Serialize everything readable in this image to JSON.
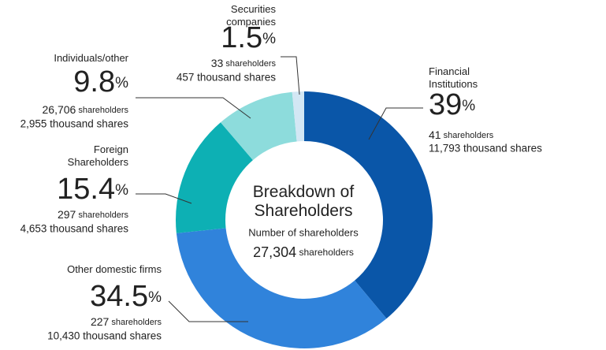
{
  "chart_data": {
    "type": "donut",
    "categories": [
      "Financial\nInstitutions",
      "Other domestic firms",
      "Foreign\nShareholders",
      "Individuals/other",
      "Securities\ncompanies"
    ],
    "values": [
      39,
      34.5,
      15.4,
      9.8,
      1.5
    ],
    "value_labels": [
      "39%",
      "34.5%",
      "15.4%",
      "9.8%",
      "1.5%"
    ],
    "colors": [
      "#0a56a8",
      "#3083db",
      "#0db0b4",
      "#8ddcdc",
      "#d3e7f4"
    ],
    "shareholder_labels": [
      "41 shareholders",
      "227 shareholders",
      "297 shareholders",
      "26,706 shareholders",
      "33 shareholders"
    ],
    "share_labels": [
      "11,793 thousand shares",
      "10,430 thousand shares",
      "4,653 thousand shares",
      "2,955 thousand shares",
      "457 thousand shares"
    ],
    "center_title": "Breakdown of\nShareholders",
    "center_subtitle": "Number of shareholders",
    "center_total": "27,304 shareholders"
  }
}
